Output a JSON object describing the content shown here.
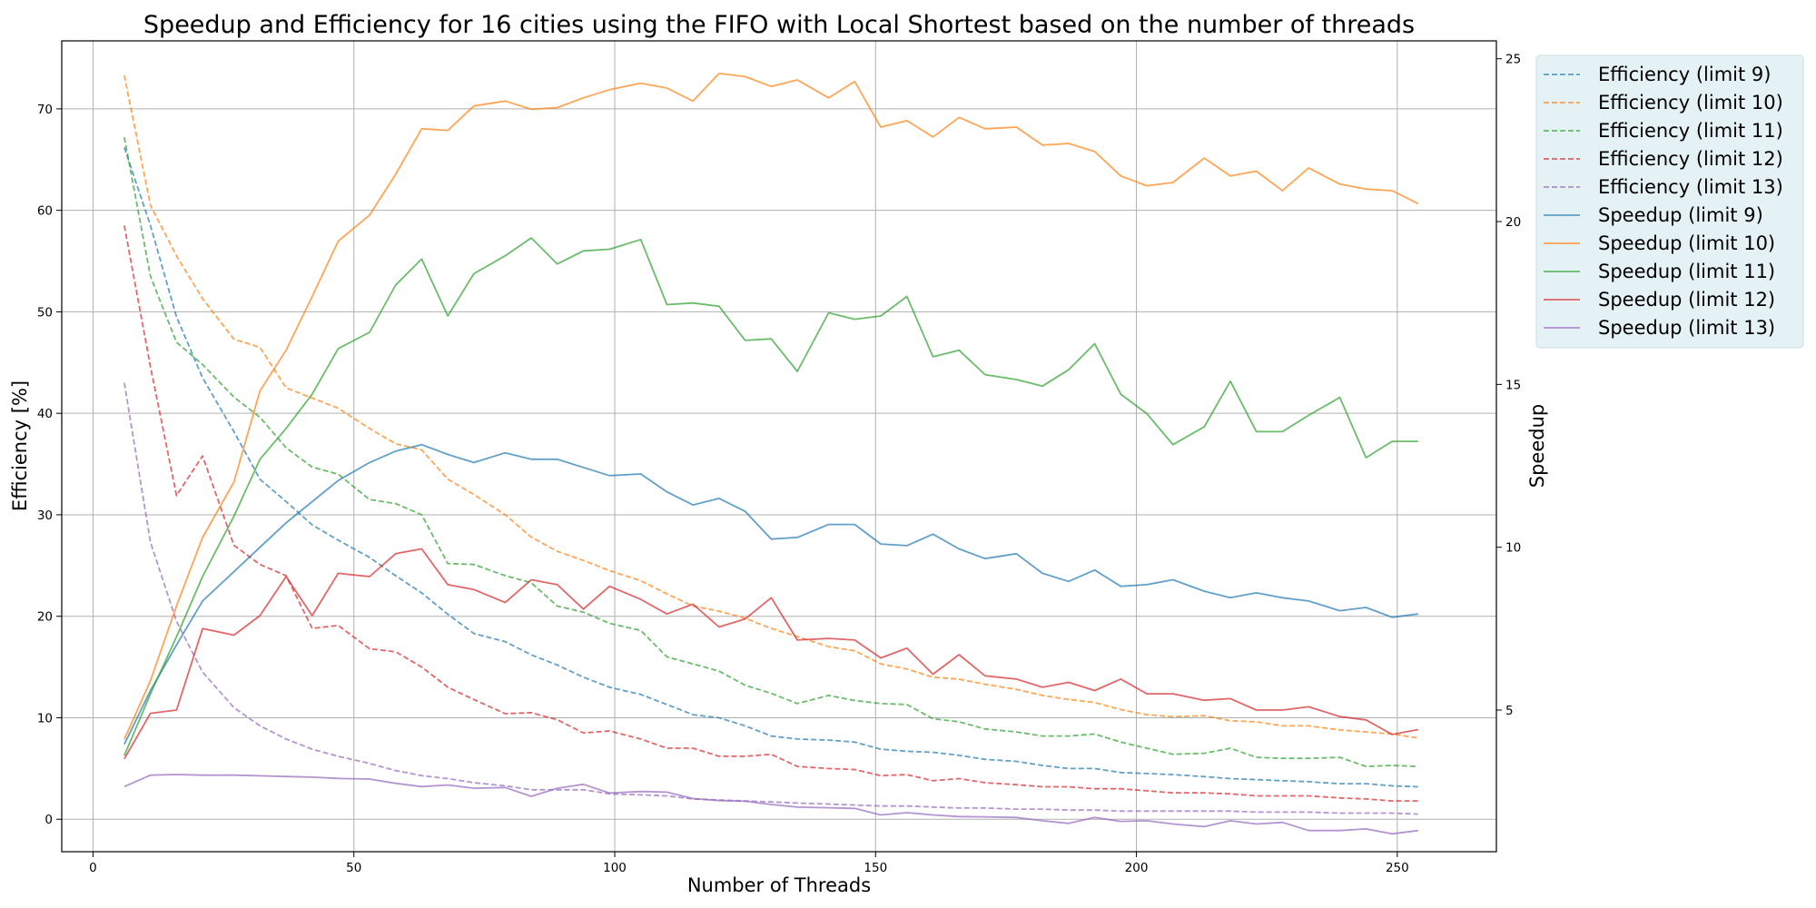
{
  "chart_data": {
    "type": "line",
    "title": "Speedup and Efficiency for 16 cities using the FIFO with Local Shortest based on the number of threads",
    "xlabel": "Number of Threads",
    "ylabel": "Efficiency [%]",
    "y2label": "Speedup",
    "xlim": [
      -6,
      269
    ],
    "ylim": [
      -3.2,
      76.7
    ],
    "y2lim": [
      0.65,
      25.55
    ],
    "x_ticks": [
      0,
      50,
      100,
      150,
      200,
      250
    ],
    "y_ticks": [
      0,
      10,
      20,
      30,
      40,
      50,
      60,
      70
    ],
    "y2_ticks": [
      5,
      10,
      15,
      20,
      25
    ],
    "grid": true,
    "legend_position": "outside-right-top",
    "colors": {
      "limit 9": "#1f77b4",
      "limit 10": "#ff7f0e",
      "limit 11": "#2ca02c",
      "limit 12": "#d62728",
      "limit 13": "#9467bd",
      "legend_bg": "#e5f2f5",
      "grid": "#b0b0b0"
    },
    "x": [
      6,
      11,
      16,
      21,
      27,
      32,
      37,
      42,
      47,
      53,
      58,
      63,
      68,
      73,
      79,
      84,
      89,
      94,
      99,
      105,
      110,
      115,
      120,
      125,
      130,
      135,
      141,
      146,
      151,
      156,
      161,
      166,
      171,
      177,
      182,
      187,
      192,
      197,
      202,
      207,
      213,
      218,
      223,
      228,
      233,
      239,
      244,
      249,
      254
    ],
    "series": [
      {
        "name": "Efficiency (limit 9)",
        "axis": "left",
        "style": "dashed",
        "color": "#1f77b4",
        "values": [
          66.2,
          58.5,
          49.5,
          43.5,
          38.2,
          33.5,
          31.3,
          29.0,
          27.5,
          25.8,
          24.0,
          22.3,
          20.2,
          18.3,
          17.5,
          16.2,
          15.2,
          14.0,
          13.0,
          12.3,
          11.3,
          10.3,
          10.0,
          9.2,
          8.2,
          7.9,
          7.8,
          7.6,
          6.9,
          6.7,
          6.6,
          6.3,
          5.9,
          5.7,
          5.3,
          5.0,
          5.0,
          4.6,
          4.5,
          4.4,
          4.2,
          4.0,
          3.9,
          3.8,
          3.7,
          3.5,
          3.5,
          3.3,
          3.2
        ]
      },
      {
        "name": "Efficiency (limit 10)",
        "axis": "left",
        "style": "dashed",
        "color": "#ff7f0e",
        "values": [
          73.3,
          60.5,
          55.5,
          51.3,
          47.3,
          46.5,
          42.5,
          41.5,
          40.5,
          38.5,
          37.0,
          36.4,
          33.5,
          32.0,
          30.0,
          27.8,
          26.4,
          25.5,
          24.5,
          23.5,
          22.2,
          21.0,
          20.5,
          19.8,
          18.8,
          18.0,
          17.0,
          16.6,
          15.3,
          14.8,
          14.0,
          13.8,
          13.3,
          12.8,
          12.2,
          11.8,
          11.5,
          10.8,
          10.3,
          10.1,
          10.2,
          9.7,
          9.6,
          9.2,
          9.2,
          8.8,
          8.6,
          8.4,
          8.0
        ]
      },
      {
        "name": "Efficiency (limit 11)",
        "axis": "left",
        "style": "dashed",
        "color": "#2ca02c",
        "values": [
          67.2,
          53.5,
          47.0,
          44.8,
          41.6,
          39.6,
          36.6,
          34.7,
          34.0,
          31.5,
          31.1,
          30.0,
          25.2,
          25.1,
          24.0,
          23.3,
          21.0,
          20.4,
          19.3,
          18.6,
          16.0,
          15.3,
          14.6,
          13.2,
          12.4,
          11.4,
          12.2,
          11.7,
          11.4,
          11.3,
          9.9,
          9.6,
          8.9,
          8.6,
          8.2,
          8.2,
          8.4,
          7.6,
          7.0,
          6.4,
          6.5,
          7.0,
          6.1,
          6.0,
          6.0,
          6.1,
          5.2,
          5.3,
          5.2
        ]
      },
      {
        "name": "Efficiency (limit 12)",
        "axis": "left",
        "style": "dashed",
        "color": "#d62728",
        "values": [
          58.5,
          44.6,
          31.9,
          35.8,
          27.0,
          25.1,
          24.0,
          18.8,
          19.1,
          16.8,
          16.5,
          15.0,
          13.0,
          11.8,
          10.4,
          10.5,
          9.8,
          8.5,
          8.7,
          7.9,
          7.0,
          7.0,
          6.2,
          6.2,
          6.4,
          5.2,
          5.0,
          4.9,
          4.3,
          4.4,
          3.8,
          4.0,
          3.6,
          3.4,
          3.2,
          3.2,
          3.0,
          3.0,
          2.8,
          2.6,
          2.6,
          2.5,
          2.3,
          2.3,
          2.3,
          2.1,
          2.0,
          1.8,
          1.8
        ]
      },
      {
        "name": "Efficiency (limit 13)",
        "axis": "left",
        "style": "dashed",
        "color": "#9467bd",
        "values": [
          43.0,
          27.3,
          19.5,
          14.5,
          11.0,
          9.2,
          7.9,
          6.9,
          6.2,
          5.5,
          4.8,
          4.3,
          4.0,
          3.6,
          3.3,
          2.9,
          2.9,
          2.9,
          2.5,
          2.4,
          2.3,
          2.0,
          1.9,
          1.8,
          1.7,
          1.6,
          1.5,
          1.4,
          1.3,
          1.3,
          1.2,
          1.1,
          1.1,
          1.0,
          1.0,
          0.9,
          0.9,
          0.8,
          0.8,
          0.8,
          0.8,
          0.8,
          0.7,
          0.7,
          0.7,
          0.6,
          0.6,
          0.6,
          0.5
        ]
      },
      {
        "name": "Speedup (limit 9)",
        "axis": "right",
        "style": "solid",
        "color": "#1f77b4",
        "values": [
          3.95,
          5.6,
          7.0,
          8.35,
          9.25,
          10.0,
          10.75,
          11.4,
          12.05,
          12.6,
          12.95,
          13.15,
          12.85,
          12.6,
          12.9,
          12.7,
          12.7,
          12.45,
          12.2,
          12.25,
          11.7,
          11.3,
          11.5,
          11.1,
          10.25,
          10.3,
          10.7,
          10.7,
          10.1,
          10.05,
          10.4,
          9.95,
          9.65,
          9.8,
          9.2,
          8.95,
          9.3,
          8.8,
          8.85,
          9.0,
          8.65,
          8.45,
          8.6,
          8.45,
          8.35,
          8.05,
          8.15,
          7.85,
          7.95
        ]
      },
      {
        "name": "Speedup (limit 10)",
        "axis": "right",
        "style": "solid",
        "color": "#ff7f0e",
        "values": [
          4.1,
          5.9,
          8.2,
          10.3,
          12.0,
          14.8,
          16.05,
          17.7,
          19.4,
          20.2,
          21.45,
          22.85,
          22.8,
          23.55,
          23.7,
          23.45,
          23.5,
          23.8,
          24.05,
          24.25,
          24.1,
          23.7,
          24.55,
          24.45,
          24.15,
          24.35,
          23.8,
          24.3,
          22.9,
          23.1,
          22.6,
          23.2,
          22.85,
          22.9,
          22.35,
          22.4,
          22.15,
          21.4,
          21.1,
          21.2,
          21.95,
          21.4,
          21.55,
          20.95,
          21.65,
          21.15,
          21.0,
          20.95,
          20.55
        ]
      },
      {
        "name": "Speedup (limit 11)",
        "axis": "right",
        "style": "solid",
        "color": "#2ca02c",
        "values": [
          3.6,
          5.5,
          7.25,
          9.1,
          10.95,
          12.7,
          13.65,
          14.7,
          16.1,
          16.6,
          18.05,
          18.85,
          17.1,
          18.4,
          18.95,
          19.5,
          18.7,
          19.1,
          19.15,
          19.45,
          17.45,
          17.5,
          17.4,
          16.35,
          16.4,
          15.4,
          17.2,
          17.0,
          17.1,
          17.7,
          15.85,
          16.05,
          15.3,
          15.15,
          14.95,
          15.45,
          16.25,
          14.7,
          14.1,
          13.15,
          13.7,
          15.1,
          13.55,
          13.55,
          14.05,
          14.6,
          12.75,
          13.25,
          13.25
        ]
      },
      {
        "name": "Speedup (limit 12)",
        "axis": "right",
        "style": "solid",
        "color": "#d62728",
        "values": [
          3.5,
          4.9,
          5.0,
          7.5,
          7.3,
          7.9,
          9.1,
          7.9,
          9.2,
          9.1,
          9.8,
          9.95,
          8.85,
          8.7,
          8.3,
          9.0,
          8.85,
          8.1,
          8.8,
          8.4,
          7.95,
          8.25,
          7.55,
          7.8,
          8.45,
          7.15,
          7.2,
          7.15,
          6.6,
          6.9,
          6.1,
          6.7,
          6.05,
          5.95,
          5.7,
          5.85,
          5.6,
          5.95,
          5.5,
          5.5,
          5.3,
          5.35,
          5.0,
          5.0,
          5.1,
          4.8,
          4.7,
          4.25,
          4.4
        ]
      },
      {
        "name": "Speedup (limit 13)",
        "axis": "right",
        "style": "solid",
        "color": "#9467bd",
        "values": [
          2.65,
          3.0,
          3.02,
          3.0,
          3.0,
          2.98,
          2.96,
          2.94,
          2.9,
          2.88,
          2.75,
          2.65,
          2.7,
          2.6,
          2.62,
          2.35,
          2.6,
          2.72,
          2.45,
          2.5,
          2.48,
          2.28,
          2.22,
          2.2,
          2.1,
          2.02,
          2.0,
          1.98,
          1.78,
          1.85,
          1.78,
          1.73,
          1.72,
          1.7,
          1.6,
          1.52,
          1.7,
          1.58,
          1.6,
          1.5,
          1.42,
          1.6,
          1.5,
          1.55,
          1.3,
          1.3,
          1.35,
          1.2,
          1.3
        ]
      }
    ]
  }
}
